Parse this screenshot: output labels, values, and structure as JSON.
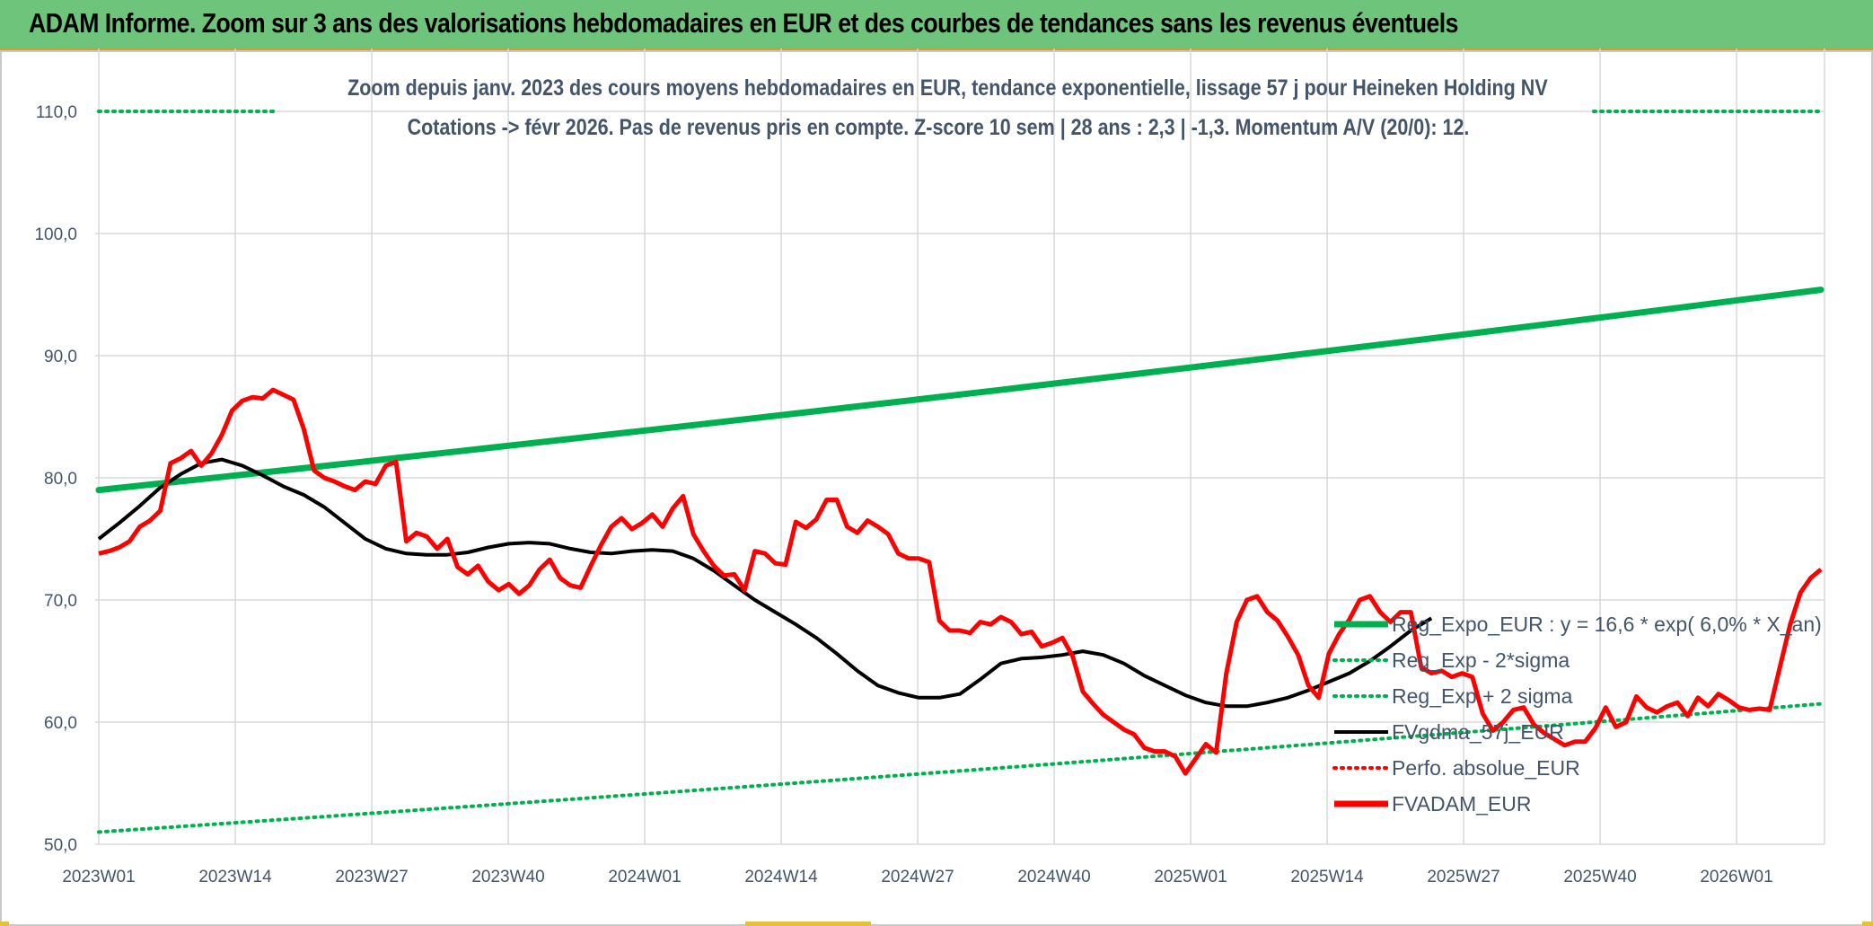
{
  "header": {
    "title": "ADAM Informe. Zoom sur 3 ans des valorisations hebdomadaires en EUR et des courbes de tendances sans les revenus éventuels"
  },
  "chart_data": {
    "type": "line",
    "title": "Zoom depuis janv. 2023 des cours moyens hebdomadaires en EUR, tendance exponentielle, lissage 57 j pour Heineken Holding NV",
    "subtitle": "Cotations -> févr 2026. Pas de revenus pris en compte. Z-score 10 sem | 28 ans : 2,3 | -1,3. Momentum A/V (20/0): 12.",
    "xlabel": "",
    "ylabel": "",
    "ylim": [
      50,
      110
    ],
    "yticks": [
      "50,0",
      "60,0",
      "70,0",
      "80,0",
      "90,0",
      "100,0",
      "110,0"
    ],
    "xtick_labels": [
      "2023W01",
      "2023W14",
      "2023W27",
      "2023W40",
      "2024W01",
      "2024W14",
      "2024W27",
      "2024W40",
      "2025W01",
      "2025W14",
      "2025W27",
      "2025W40",
      "2026W01"
    ],
    "x_week_index": {
      "first": 0,
      "last": 163,
      "tick_step": 13
    },
    "grid": true,
    "legend_position": "right",
    "series": [
      {
        "name": "Reg_Expo_EUR : y = 16,6 * exp( 6,0% *  X_an)",
        "color": "#00b050",
        "style": "solid-thick",
        "values": [
          79.0,
          95.4
        ]
      },
      {
        "name": "Reg_Exp - 2*sigma",
        "color": "#00b050",
        "style": "dotted",
        "values": [
          51.0,
          61.5
        ]
      },
      {
        "name": "Reg_Exp + 2 sigma",
        "color": "#00b050",
        "style": "dotted",
        "values": [
          110.0,
          110.0
        ]
      },
      {
        "name": "FVgdma_57j_EUR",
        "color": "#000000",
        "style": "solid",
        "points": [
          [
            0,
            75.0
          ],
          [
            4,
            76.3
          ],
          [
            8,
            77.7
          ],
          [
            12,
            79.2
          ],
          [
            16,
            80.3
          ],
          [
            20,
            81.2
          ],
          [
            24,
            81.5
          ],
          [
            28,
            81.0
          ],
          [
            32,
            80.2
          ],
          [
            36,
            79.3
          ],
          [
            40,
            78.6
          ],
          [
            44,
            77.6
          ],
          [
            48,
            76.3
          ],
          [
            52,
            75.0
          ],
          [
            56,
            74.2
          ],
          [
            60,
            73.8
          ],
          [
            64,
            73.7
          ],
          [
            68,
            73.7
          ],
          [
            72,
            73.9
          ],
          [
            76,
            74.3
          ],
          [
            80,
            74.6
          ],
          [
            84,
            74.7
          ],
          [
            88,
            74.6
          ],
          [
            92,
            74.2
          ],
          [
            96,
            73.9
          ],
          [
            100,
            73.8
          ],
          [
            104,
            74.0
          ],
          [
            108,
            74.1
          ],
          [
            112,
            74.0
          ],
          [
            116,
            73.4
          ],
          [
            120,
            72.4
          ],
          [
            124,
            71.2
          ],
          [
            128,
            70.0
          ],
          [
            132,
            69.0
          ],
          [
            136,
            68.0
          ],
          [
            140,
            66.9
          ],
          [
            144,
            65.6
          ],
          [
            148,
            64.2
          ],
          [
            152,
            63.0
          ],
          [
            156,
            62.4
          ],
          [
            160,
            62.0
          ],
          [
            164,
            62.0
          ],
          [
            168,
            62.3
          ],
          [
            172,
            63.5
          ],
          [
            176,
            64.8
          ],
          [
            180,
            65.2
          ],
          [
            184,
            65.3
          ],
          [
            188,
            65.5
          ],
          [
            192,
            65.8
          ],
          [
            196,
            65.5
          ],
          [
            200,
            64.8
          ],
          [
            204,
            63.8
          ],
          [
            208,
            63.0
          ],
          [
            212,
            62.2
          ],
          [
            216,
            61.6
          ],
          [
            220,
            61.3
          ],
          [
            224,
            61.3
          ],
          [
            228,
            61.6
          ],
          [
            232,
            62.0
          ],
          [
            236,
            62.6
          ],
          [
            240,
            63.3
          ],
          [
            244,
            64.0
          ],
          [
            248,
            65.0
          ],
          [
            252,
            66.2
          ],
          [
            256,
            67.5
          ],
          [
            260,
            68.5
          ]
        ]
      },
      {
        "name": "Perfo. absolue_EUR",
        "color": "#ff0000",
        "style": "dotted",
        "points": []
      },
      {
        "name": "FVADAM_EUR",
        "color": "#ff0000",
        "style": "solid-thick",
        "points": [
          [
            0,
            73.8
          ],
          [
            2,
            74.0
          ],
          [
            4,
            74.3
          ],
          [
            6,
            74.8
          ],
          [
            8,
            76.0
          ],
          [
            10,
            76.5
          ],
          [
            12,
            77.3
          ],
          [
            14,
            81.2
          ],
          [
            16,
            81.6
          ],
          [
            18,
            82.2
          ],
          [
            20,
            81.0
          ],
          [
            22,
            82.0
          ],
          [
            24,
            83.5
          ],
          [
            26,
            85.5
          ],
          [
            28,
            86.3
          ],
          [
            30,
            86.6
          ],
          [
            32,
            86.5
          ],
          [
            34,
            87.2
          ],
          [
            36,
            86.8
          ],
          [
            38,
            86.4
          ],
          [
            40,
            84.0
          ],
          [
            42,
            80.6
          ],
          [
            44,
            80.0
          ],
          [
            46,
            79.7
          ],
          [
            48,
            79.3
          ],
          [
            50,
            79.0
          ],
          [
            52,
            79.7
          ],
          [
            54,
            79.5
          ],
          [
            56,
            81.0
          ],
          [
            58,
            81.3
          ],
          [
            60,
            74.8
          ],
          [
            62,
            75.5
          ],
          [
            64,
            75.2
          ],
          [
            66,
            74.2
          ],
          [
            68,
            75.0
          ],
          [
            70,
            72.7
          ],
          [
            72,
            72.1
          ],
          [
            74,
            72.8
          ],
          [
            76,
            71.5
          ],
          [
            78,
            70.8
          ],
          [
            80,
            71.3
          ],
          [
            82,
            70.5
          ],
          [
            84,
            71.2
          ],
          [
            86,
            72.5
          ],
          [
            88,
            73.3
          ],
          [
            90,
            71.8
          ],
          [
            92,
            71.2
          ],
          [
            94,
            71.0
          ],
          [
            96,
            72.8
          ],
          [
            98,
            74.5
          ],
          [
            100,
            76.0
          ],
          [
            102,
            76.7
          ],
          [
            104,
            75.8
          ],
          [
            106,
            76.3
          ],
          [
            108,
            77.0
          ],
          [
            110,
            76.0
          ],
          [
            112,
            77.5
          ],
          [
            114,
            78.5
          ],
          [
            116,
            75.4
          ],
          [
            118,
            74.0
          ],
          [
            120,
            72.8
          ],
          [
            122,
            72.0
          ],
          [
            124,
            72.1
          ],
          [
            126,
            70.8
          ],
          [
            128,
            74.0
          ],
          [
            130,
            73.8
          ],
          [
            132,
            73.0
          ],
          [
            134,
            72.9
          ],
          [
            136,
            76.4
          ],
          [
            138,
            75.9
          ],
          [
            140,
            76.6
          ],
          [
            142,
            78.2
          ],
          [
            144,
            78.2
          ],
          [
            146,
            76.0
          ],
          [
            148,
            75.5
          ],
          [
            150,
            76.5
          ],
          [
            152,
            76.0
          ],
          [
            154,
            75.4
          ],
          [
            156,
            73.8
          ],
          [
            158,
            73.4
          ],
          [
            160,
            73.4
          ],
          [
            162,
            73.1
          ],
          [
            164,
            68.3
          ],
          [
            166,
            67.5
          ],
          [
            168,
            67.5
          ],
          [
            170,
            67.3
          ],
          [
            172,
            68.2
          ],
          [
            174,
            68.0
          ],
          [
            176,
            68.6
          ],
          [
            178,
            68.2
          ],
          [
            180,
            67.2
          ],
          [
            182,
            67.4
          ],
          [
            184,
            66.2
          ],
          [
            186,
            66.5
          ],
          [
            188,
            66.9
          ],
          [
            190,
            65.4
          ],
          [
            192,
            62.5
          ],
          [
            194,
            61.5
          ],
          [
            196,
            60.6
          ],
          [
            198,
            60.0
          ],
          [
            200,
            59.4
          ],
          [
            202,
            59.0
          ],
          [
            204,
            57.9
          ],
          [
            206,
            57.6
          ],
          [
            208,
            57.6
          ],
          [
            210,
            57.2
          ],
          [
            212,
            55.8
          ],
          [
            214,
            57.0
          ],
          [
            216,
            58.2
          ],
          [
            218,
            57.5
          ],
          [
            220,
            64.0
          ],
          [
            222,
            68.2
          ],
          [
            224,
            70.0
          ],
          [
            226,
            70.3
          ],
          [
            228,
            69.0
          ],
          [
            230,
            68.3
          ],
          [
            232,
            67.0
          ],
          [
            234,
            65.5
          ],
          [
            236,
            63.0
          ],
          [
            238,
            62.0
          ],
          [
            240,
            65.6
          ],
          [
            242,
            67.2
          ],
          [
            244,
            68.4
          ],
          [
            246,
            70.0
          ],
          [
            248,
            70.3
          ],
          [
            250,
            69.0
          ],
          [
            252,
            68.2
          ],
          [
            254,
            69.0
          ],
          [
            256,
            69.0
          ],
          [
            258,
            64.5
          ],
          [
            260,
            64.0
          ],
          [
            262,
            64.2
          ],
          [
            264,
            63.7
          ],
          [
            266,
            64.0
          ],
          [
            268,
            63.7
          ],
          [
            270,
            60.7
          ],
          [
            272,
            59.3
          ],
          [
            274,
            60.0
          ],
          [
            276,
            61.0
          ],
          [
            278,
            61.2
          ],
          [
            280,
            59.8
          ],
          [
            282,
            59.1
          ],
          [
            284,
            58.6
          ],
          [
            286,
            58.1
          ],
          [
            288,
            58.4
          ],
          [
            290,
            58.4
          ],
          [
            292,
            59.5
          ],
          [
            294,
            61.2
          ],
          [
            296,
            59.6
          ],
          [
            298,
            60.0
          ],
          [
            300,
            62.1
          ],
          [
            302,
            61.2
          ],
          [
            304,
            60.8
          ],
          [
            306,
            61.3
          ],
          [
            308,
            61.6
          ],
          [
            310,
            60.5
          ],
          [
            312,
            62.0
          ],
          [
            314,
            61.3
          ],
          [
            316,
            62.3
          ],
          [
            318,
            61.8
          ],
          [
            320,
            61.2
          ],
          [
            322,
            61.0
          ],
          [
            324,
            61.1
          ],
          [
            326,
            61.0
          ],
          [
            328,
            64.5
          ],
          [
            330,
            68.0
          ],
          [
            332,
            70.6
          ],
          [
            334,
            71.8
          ],
          [
            336,
            72.5
          ]
        ]
      }
    ],
    "legend": [
      {
        "label": "Reg_Expo_EUR : y = 16,6 * exp( 6,0% *  X_an)",
        "color": "#00b050",
        "style": "solid-thick"
      },
      {
        "label": "Reg_Exp - 2*sigma",
        "color": "#00b050",
        "style": "dotted"
      },
      {
        "label": "Reg_Exp + 2 sigma",
        "color": "#00b050",
        "style": "dotted"
      },
      {
        "label": "FVgdma_57j_EUR",
        "color": "#000000",
        "style": "solid"
      },
      {
        "label": "Perfo. absolue_EUR",
        "color": "#ff0000",
        "style": "dotted"
      },
      {
        "label": "FVADAM_EUR",
        "color": "#ff0000",
        "style": "solid-thick"
      }
    ]
  }
}
